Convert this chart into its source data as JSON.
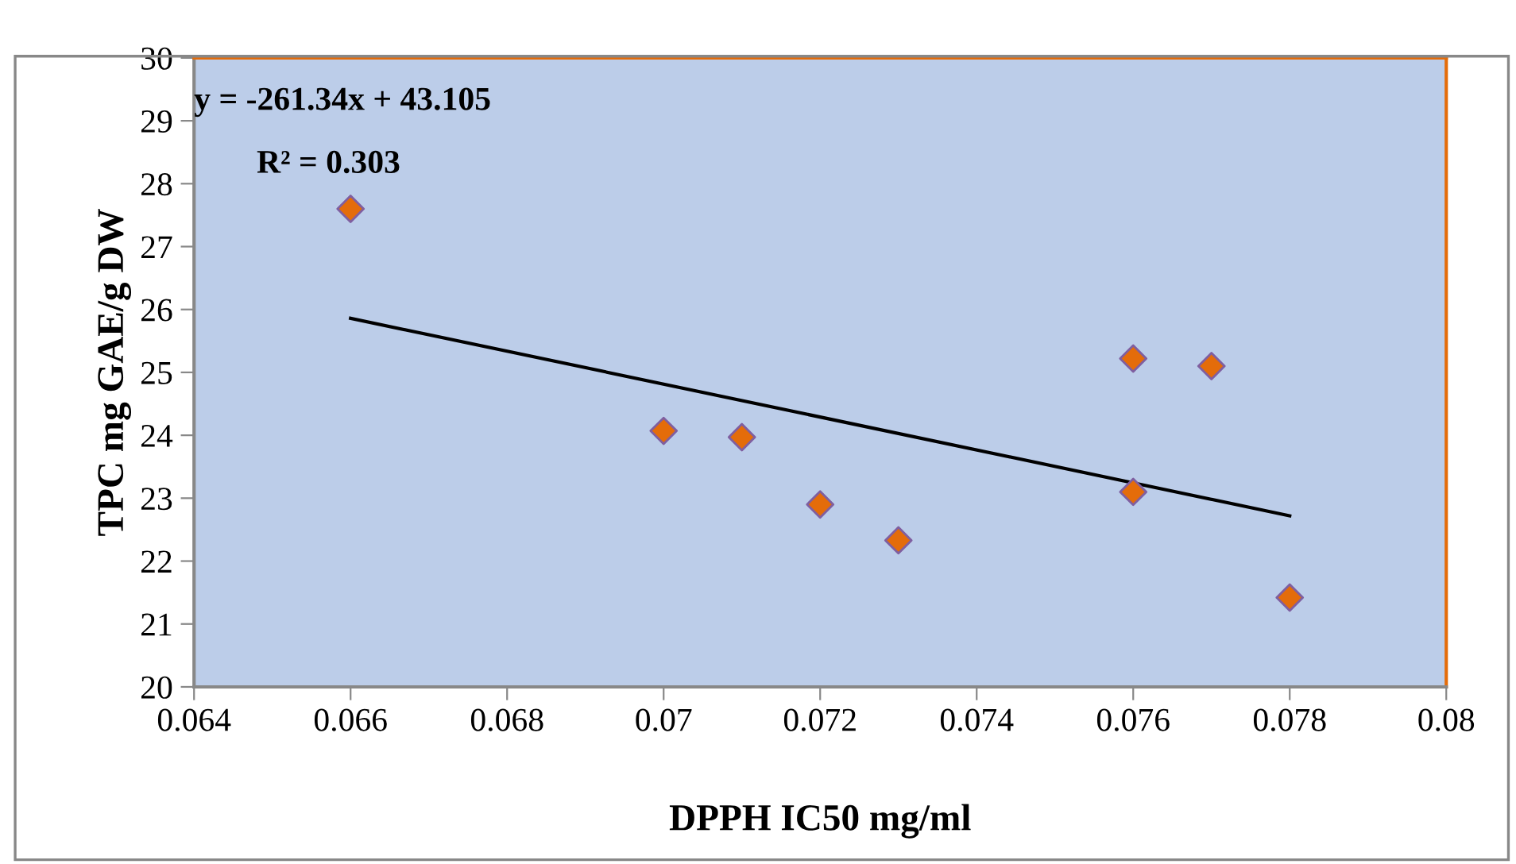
{
  "chart_data": {
    "type": "scatter",
    "xlabel": "DPPH IC50 mg/ml",
    "ylabel": "TPC mg GAE/g DW",
    "x": [
      0.066,
      0.07,
      0.071,
      0.072,
      0.073,
      0.076,
      0.076,
      0.077,
      0.078
    ],
    "series": [
      {
        "color": "#e46c0a",
        "marker": "diamond",
        "values": [
          27.6,
          24.07,
          23.97,
          22.9,
          22.33,
          25.22,
          23.1,
          25.1,
          21.42
        ]
      },
      {
        "type": "line",
        "color": "#000000",
        "marker": "none",
        "line_style": "solid",
        "x": [
          0.066,
          0.078
        ],
        "values": [
          25.86,
          22.72
        ]
      }
    ],
    "annotations": [
      "y = -261.34x + 43.105",
      "R² = 0.303"
    ],
    "xlim": [
      0.064,
      0.08
    ],
    "xticks": [
      0.064,
      0.066,
      0.068,
      0.07,
      0.072,
      0.074,
      0.076,
      0.078,
      0.08
    ],
    "ylim": [
      20,
      30
    ],
    "yticks": [
      20,
      21,
      22,
      23,
      24,
      25,
      26,
      27,
      28,
      29,
      30
    ],
    "grid": false,
    "legend": false
  }
}
